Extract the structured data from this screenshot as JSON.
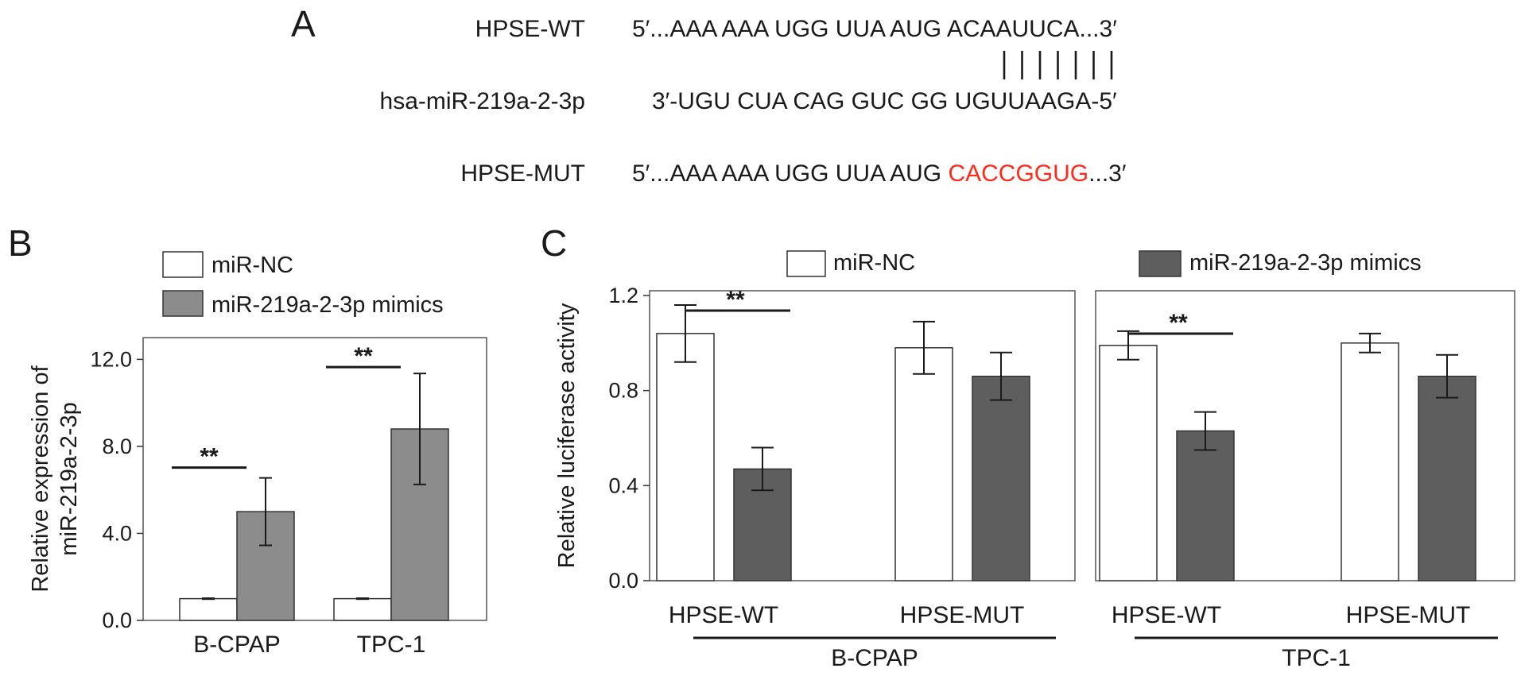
{
  "panel_a": {
    "letter": "A",
    "wt_label": "HPSE-WT",
    "wt_seq_prefix": "5′...AAA AAA UGG UUA AUG ",
    "wt_seq_site": "ACAAUUCA",
    "wt_seq_suffix": "...3′",
    "mir_label": "hsa-miR-219a-2-3p",
    "mir_seq": "3′-UGU CUA CAG GUC GG UGUUAAGA-5′",
    "mut_label": "HPSE-MUT",
    "mut_seq_prefix": "5′...AAA AAA UGG UUA AUG ",
    "mut_seq_site": "CACCGGUG",
    "mut_seq_suffix": "...3′",
    "pair_lines": 7,
    "mutant_color": "#ff2a1a"
  },
  "chart_data": [
    {
      "panel": "B",
      "type": "bar",
      "ylabel": [
        "Relative expression of",
        "miR-219a-2-3p"
      ],
      "ylim": [
        0,
        13.0
      ],
      "yticks": [
        "0.0",
        "4.0",
        "8.0",
        "12.0"
      ],
      "ytick_values": [
        0,
        4,
        8,
        12
      ],
      "categories": [
        "B-CPAP",
        "TPC-1"
      ],
      "series": [
        {
          "name": "miR-NC",
          "values": [
            1.0,
            1.0
          ],
          "errors": [
            0.02,
            0.02
          ],
          "color": "#ffffff"
        },
        {
          "name": "miR-219a-2-3p mimics",
          "values": [
            5.0,
            8.8
          ],
          "errors": [
            1.55,
            2.55
          ],
          "color": "#8c8c8c"
        }
      ],
      "significance": [
        "**",
        "**"
      ],
      "legend_position": "top"
    },
    {
      "panel": "C",
      "type": "bar",
      "ylabel": "Relative luciferase activity",
      "ylim": [
        0,
        1.22
      ],
      "yticks": [
        "0.0",
        "0.4",
        "0.8",
        "1.2"
      ],
      "ytick_values": [
        0,
        0.4,
        0.8,
        1.2
      ],
      "groups": [
        {
          "name": "B-CPAP",
          "categories": [
            "HPSE-WT",
            "HPSE-MUT"
          ],
          "miR-NC": [
            1.04,
            0.98
          ],
          "miR-NC_err": [
            0.12,
            0.11
          ],
          "mimics": [
            0.47,
            0.86
          ],
          "mimics_err": [
            0.09,
            0.1
          ],
          "significance": [
            "**",
            ""
          ]
        },
        {
          "name": "TPC-1",
          "categories": [
            "HPSE-WT",
            "HPSE-MUT"
          ],
          "miR-NC": [
            0.99,
            1.0
          ],
          "miR-NC_err": [
            0.06,
            0.04
          ],
          "mimics": [
            0.63,
            0.86
          ],
          "mimics_err": [
            0.08,
            0.09
          ],
          "significance": [
            "**",
            ""
          ]
        }
      ],
      "series": [
        {
          "name": "miR-NC",
          "color": "#ffffff"
        },
        {
          "name": "miR-219a-2-3p mimics",
          "color": "#5e5e5e"
        }
      ],
      "legend_position": "top"
    }
  ]
}
